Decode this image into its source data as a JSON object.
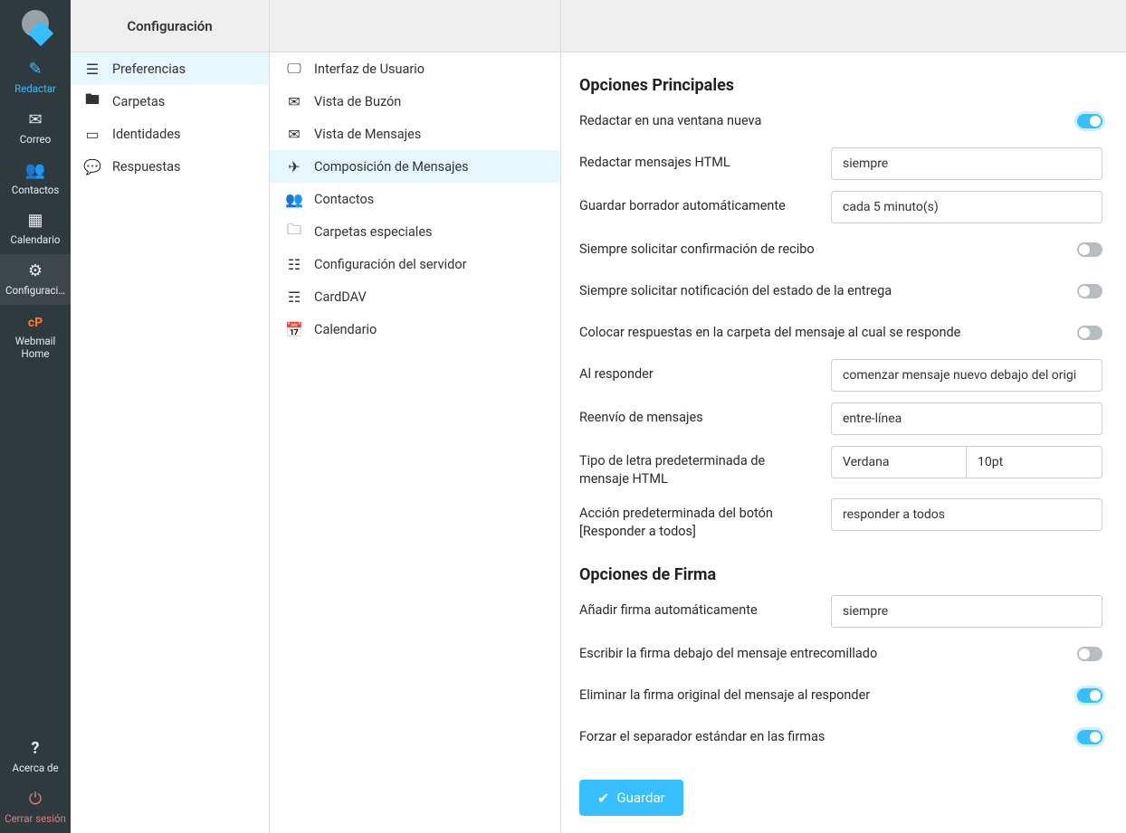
{
  "colors": {
    "accent": "#37beff",
    "navbg": "#2f3a3f",
    "sel": "#e6f7ff",
    "border": "#ccc",
    "danger": "#e07a7a"
  },
  "nav": {
    "items": [
      {
        "key": "compose",
        "label": "Redactar",
        "icon": "compose",
        "active": true
      },
      {
        "key": "mail",
        "label": "Correo",
        "icon": "mail"
      },
      {
        "key": "contacts",
        "label": "Contactos",
        "icon": "contacts"
      },
      {
        "key": "calendar",
        "label": "Calendario",
        "icon": "cal"
      },
      {
        "key": "settings",
        "label": "Configuraci…",
        "icon": "gear",
        "highlight": true
      },
      {
        "key": "cpanel",
        "label": "Webmail Home",
        "icon": "cp",
        "cp": true
      }
    ],
    "footer": [
      {
        "key": "about",
        "label": "Acerca de",
        "icon": "help"
      },
      {
        "key": "logout",
        "label": "Cerrar sesión",
        "icon": "power",
        "logout": true
      }
    ]
  },
  "col2": {
    "title": "Configuración",
    "items": [
      {
        "key": "prefs",
        "label": "Preferencias",
        "icon": "sliders",
        "selected": true
      },
      {
        "key": "folders",
        "label": "Carpetas",
        "icon": "folder"
      },
      {
        "key": "identities",
        "label": "Identidades",
        "icon": "id"
      },
      {
        "key": "responses",
        "label": "Respuestas",
        "icon": "chat"
      }
    ]
  },
  "col3": {
    "title": "",
    "items": [
      {
        "key": "ui",
        "label": "Interfaz de Usuario",
        "icon": "monitor"
      },
      {
        "key": "mailbox",
        "label": "Vista de Buzón",
        "icon": "env"
      },
      {
        "key": "msgview",
        "label": "Vista de Mensajes",
        "icon": "env"
      },
      {
        "key": "compose",
        "label": "Composición de Mensajes",
        "icon": "send",
        "selected": true
      },
      {
        "key": "contacts",
        "label": "Contactos",
        "icon": "people"
      },
      {
        "key": "special",
        "label": "Carpetas especiales",
        "icon": "folder2"
      },
      {
        "key": "server",
        "label": "Configuración del servidor",
        "icon": "server"
      },
      {
        "key": "carddav",
        "label": "CardDAV",
        "icon": "card"
      },
      {
        "key": "caldav",
        "label": "Calendario",
        "icon": "caldav"
      }
    ]
  },
  "main": {
    "section1_title": "Opciones Principales",
    "rows1": [
      {
        "type": "toggle",
        "label": "Redactar en una ventana nueva",
        "on": true,
        "key": "new-window"
      },
      {
        "type": "select",
        "label": "Redactar mensajes HTML",
        "value": "siempre",
        "key": "html-compose"
      },
      {
        "type": "select",
        "label": "Guardar borrador automáticamente",
        "value": "cada 5 minuto(s)",
        "key": "autosave"
      },
      {
        "type": "toggle",
        "label": "Siempre solicitar confirmación de recibo",
        "on": false,
        "key": "receipt"
      },
      {
        "type": "toggle",
        "label": "Siempre solicitar notificación del estado de la entrega",
        "on": false,
        "key": "dsn"
      },
      {
        "type": "toggle",
        "label": "Colocar respuestas en la carpeta del mensaje al cual se responde",
        "on": false,
        "key": "reply-folder"
      },
      {
        "type": "select",
        "label": "Al responder",
        "value": "comenzar mensaje nuevo debajo del origi",
        "key": "reply-mode"
      },
      {
        "type": "select",
        "label": "Reenvío de mensajes",
        "value": "entre-línea",
        "key": "forward-mode"
      },
      {
        "type": "select2",
        "label": "Tipo de letra predeterminada de mensaje HTML",
        "value": "Verdana",
        "value2": "10pt",
        "key": "font"
      },
      {
        "type": "select",
        "label": "Acción predeterminada del botón [Responder a todos]",
        "value": "responder a todos",
        "key": "replyall"
      }
    ],
    "section2_title": "Opciones de Firma",
    "rows2": [
      {
        "type": "select",
        "label": "Añadir firma automáticamente",
        "value": "siempre",
        "key": "sig-auto"
      },
      {
        "type": "toggle",
        "label": "Escribir la firma debajo del mensaje entrecomi­llado",
        "on": false,
        "key": "sig-below"
      },
      {
        "type": "toggle",
        "label": "Eliminar la firma original del mensaje al respon­der",
        "on": true,
        "key": "sig-strip"
      },
      {
        "type": "toggle",
        "label": "Forzar el separador estándar en las firmas",
        "on": true,
        "key": "sig-sep"
      }
    ],
    "save_label": "Guardar"
  }
}
